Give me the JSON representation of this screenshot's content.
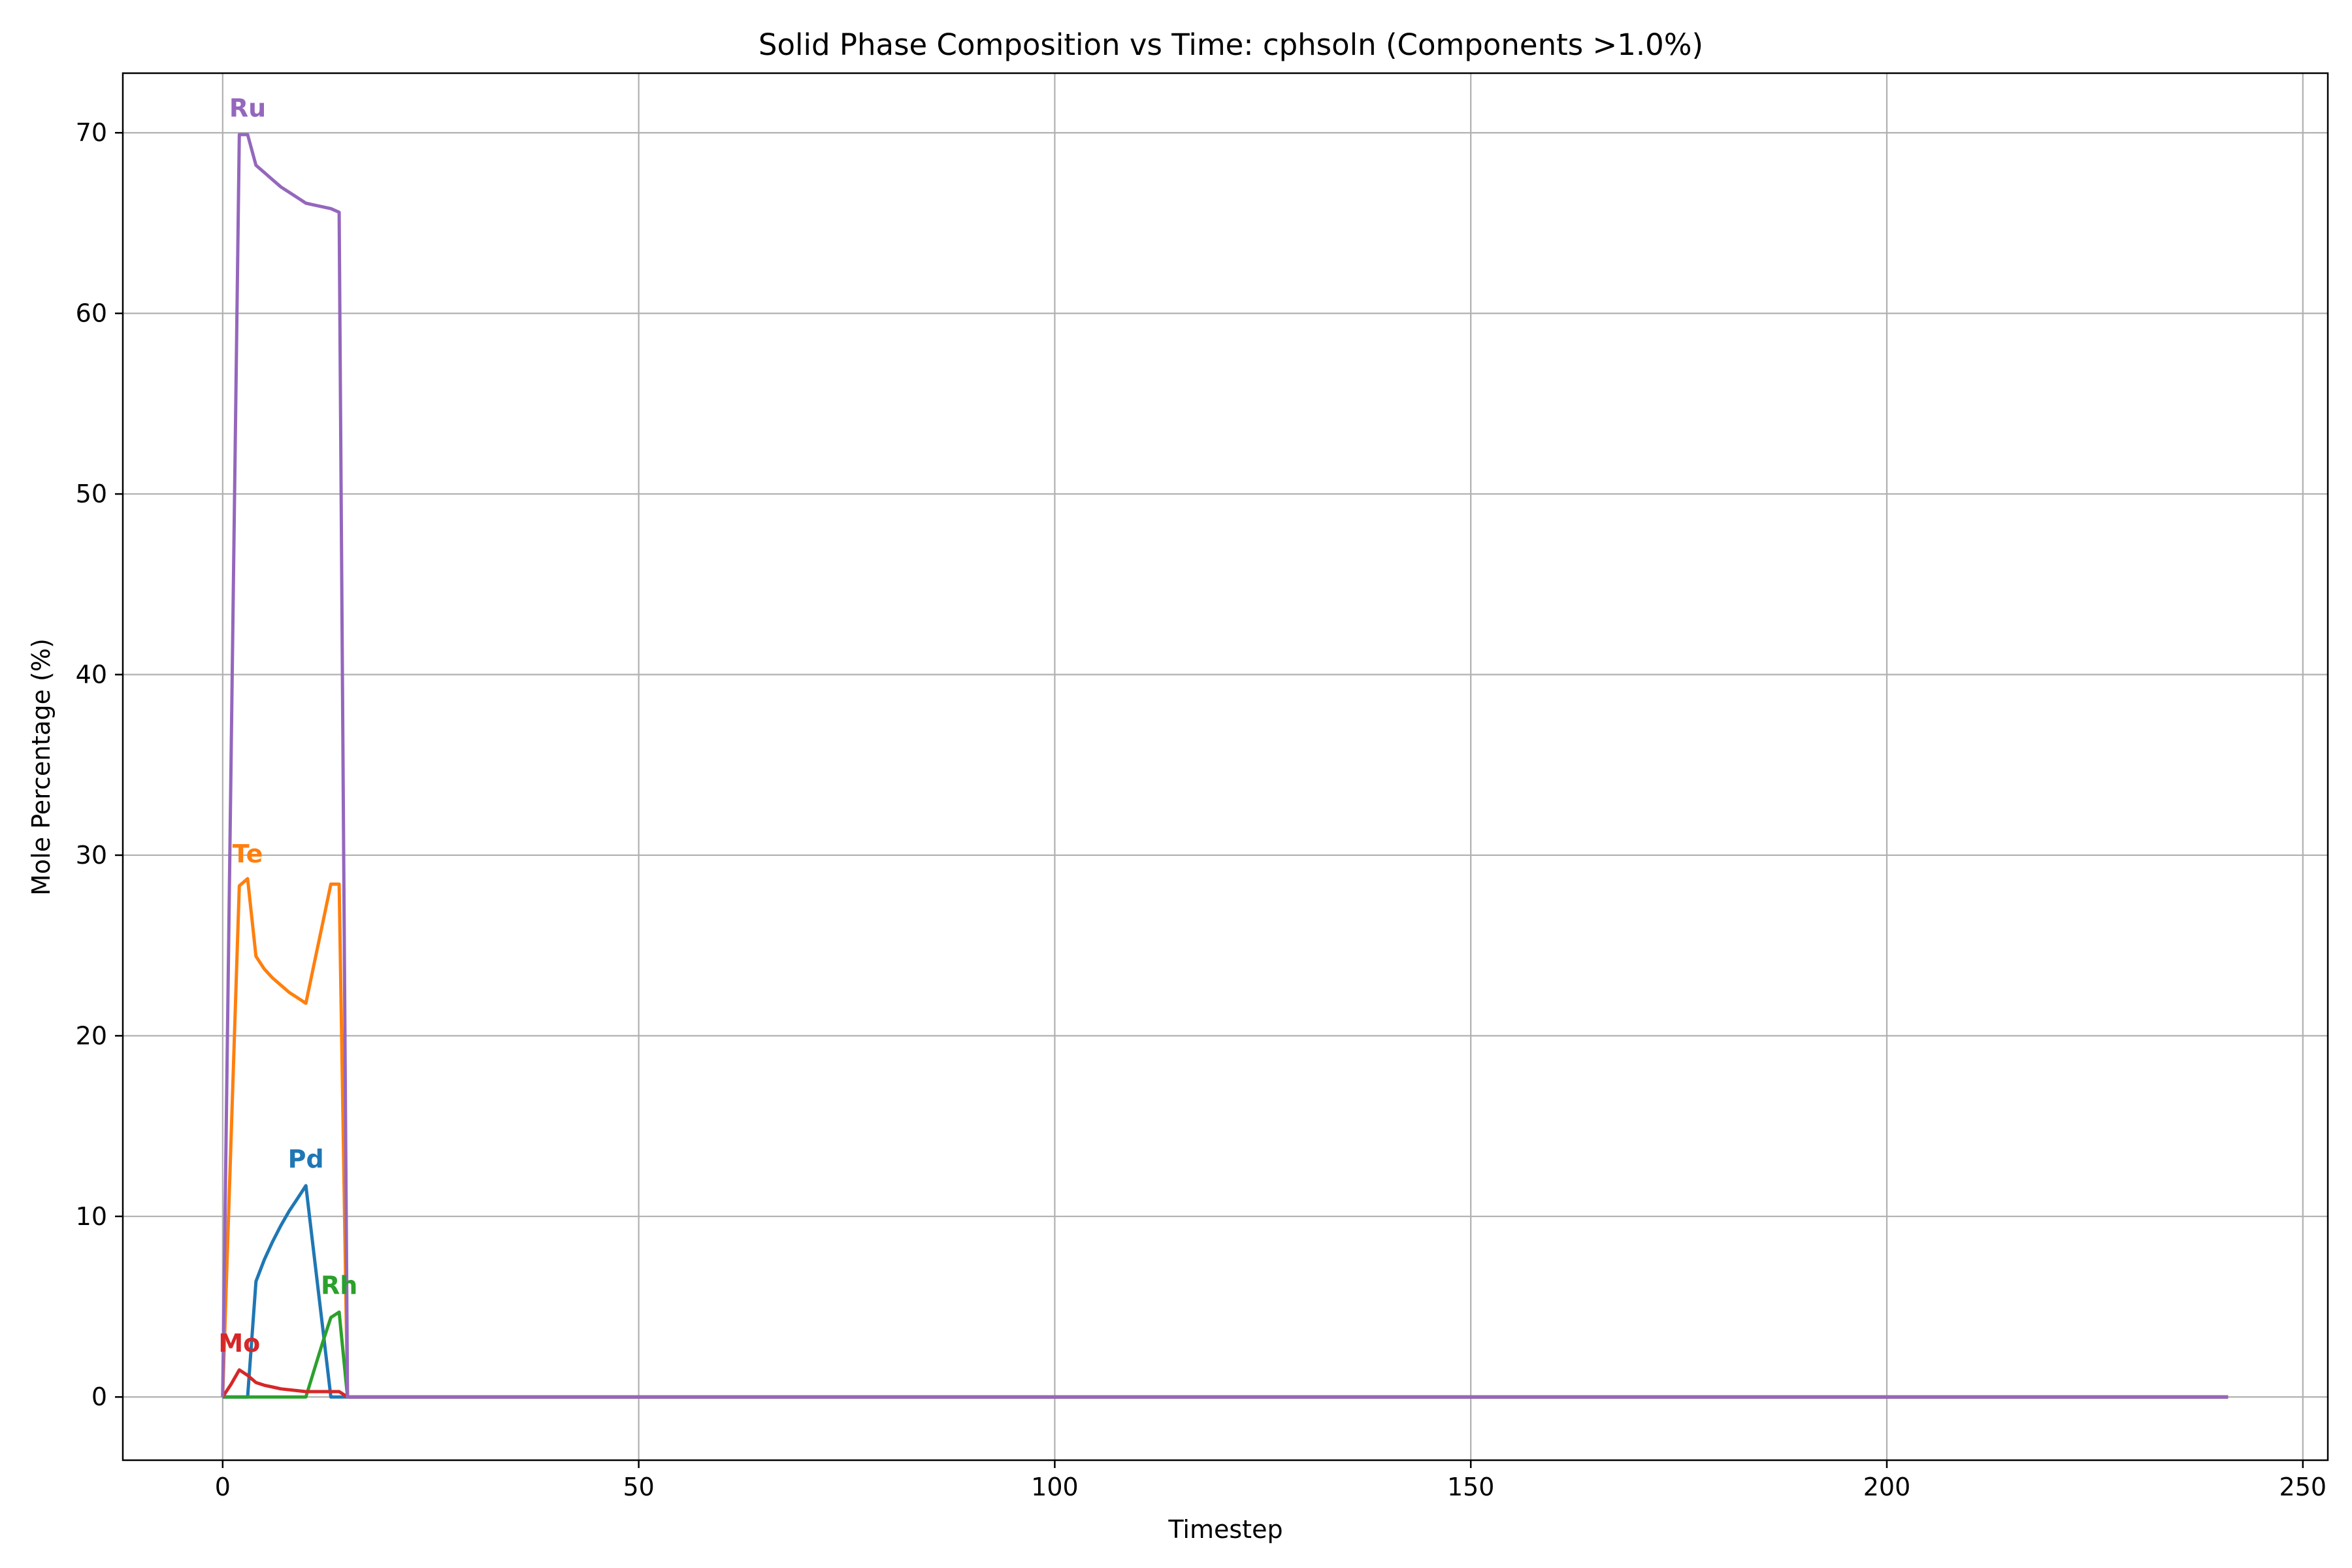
{
  "chart_data": {
    "type": "line",
    "title": "Solid Phase Composition vs Time: cphsoln (Components >1.0%)",
    "xlabel": "Timestep",
    "ylabel": "Mole Percentage (%)",
    "xlim": [
      -12,
      253
    ],
    "ylim": [
      -3.5,
      73.3
    ],
    "xticks": [
      0,
      50,
      100,
      150,
      200,
      250
    ],
    "yticks": [
      0,
      10,
      20,
      30,
      40,
      50,
      60,
      70
    ],
    "grid": true,
    "legend": "none",
    "series": [
      {
        "name": "Pd",
        "color": "#1f77b4",
        "x": [
          0,
          1,
          2,
          3,
          4,
          5,
          6,
          7,
          8,
          9,
          10,
          11,
          12,
          13,
          14,
          15,
          16,
          241
        ],
        "y": [
          0,
          0,
          0,
          0,
          6.4,
          7.6,
          8.6,
          9.5,
          10.3,
          11.0,
          11.7,
          7.8,
          3.9,
          0,
          0,
          0,
          0,
          0
        ]
      },
      {
        "name": "Te",
        "color": "#ff7f0e",
        "x": [
          0,
          1,
          2,
          3,
          4,
          5,
          6,
          7,
          8,
          9,
          10,
          11,
          12,
          13,
          14,
          15,
          16,
          241
        ],
        "y": [
          0,
          14.2,
          28.3,
          28.7,
          24.4,
          23.7,
          23.2,
          22.8,
          22.4,
          22.1,
          21.8,
          24.0,
          26.2,
          28.4,
          28.4,
          0,
          0,
          0
        ]
      },
      {
        "name": "Rh",
        "color": "#2ca02c",
        "x": [
          0,
          1,
          2,
          3,
          4,
          5,
          6,
          7,
          8,
          9,
          10,
          11,
          12,
          13,
          14,
          15,
          16,
          241
        ],
        "y": [
          0,
          0,
          0,
          0,
          0,
          0,
          0,
          0,
          0,
          0,
          0,
          1.5,
          3.0,
          4.4,
          4.7,
          0,
          0,
          0
        ]
      },
      {
        "name": "Mo",
        "color": "#d62728",
        "x": [
          0,
          1,
          2,
          3,
          4,
          5,
          6,
          7,
          8,
          9,
          10,
          11,
          12,
          13,
          14,
          15,
          16,
          241
        ],
        "y": [
          0,
          0.7,
          1.5,
          1.2,
          0.8,
          0.65,
          0.55,
          0.45,
          0.4,
          0.35,
          0.3,
          0.3,
          0.3,
          0.3,
          0.3,
          0,
          0,
          0
        ]
      },
      {
        "name": "Ru",
        "color": "#9467bd",
        "x": [
          0,
          1,
          2,
          3,
          4,
          5,
          6,
          7,
          8,
          9,
          10,
          11,
          12,
          13,
          14,
          15,
          16,
          241
        ],
        "y": [
          0,
          35.0,
          69.9,
          69.9,
          68.2,
          67.8,
          67.4,
          67.0,
          66.7,
          66.4,
          66.1,
          66.0,
          65.9,
          65.8,
          65.6,
          0,
          0,
          0
        ]
      }
    ],
    "annotations": [
      {
        "text": "Ru",
        "series": "Ru",
        "x": 3,
        "y": 70.9
      },
      {
        "text": "Te",
        "series": "Te",
        "x": 3,
        "y": 29.6
      },
      {
        "text": "Pd",
        "series": "Pd",
        "x": 10,
        "y": 12.7
      },
      {
        "text": "Rh",
        "series": "Rh",
        "x": 14,
        "y": 5.7
      },
      {
        "text": "Mo",
        "series": "Mo",
        "x": 2,
        "y": 2.5
      }
    ]
  }
}
